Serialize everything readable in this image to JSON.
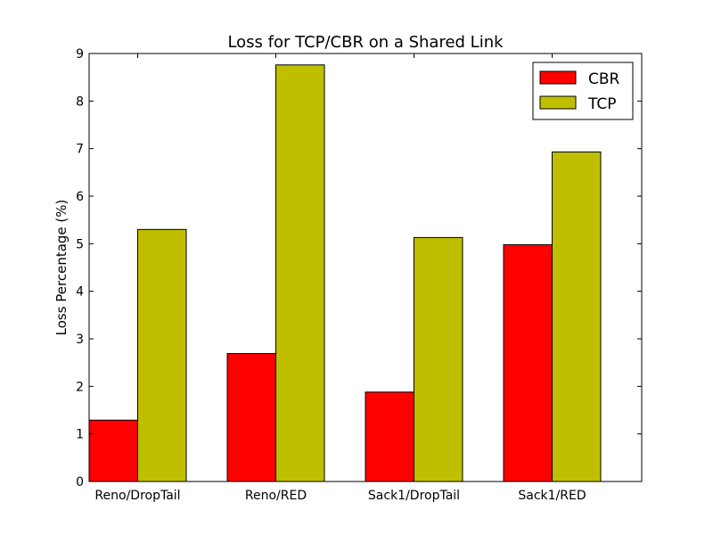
{
  "chart_data": {
    "type": "bar",
    "title": "Loss for TCP/CBR on a Shared Link",
    "xlabel": "",
    "ylabel": "Loss Percentage (%)",
    "ylim": [
      0,
      9
    ],
    "yticks": [
      "0",
      "1",
      "2",
      "3",
      "4",
      "5",
      "6",
      "7",
      "8",
      "9"
    ],
    "categories": [
      "Reno/DropTail",
      "Reno/RED",
      "Sack1/DropTail",
      "Sack1/RED"
    ],
    "series": [
      {
        "name": "CBR",
        "color": "#ff0000",
        "values": [
          1.29,
          2.69,
          1.88,
          4.98
        ]
      },
      {
        "name": "TCP",
        "color": "#bfbf00",
        "values": [
          5.3,
          8.76,
          5.13,
          6.93
        ]
      }
    ],
    "legend": {
      "position": "top-right"
    },
    "grid": false
  }
}
